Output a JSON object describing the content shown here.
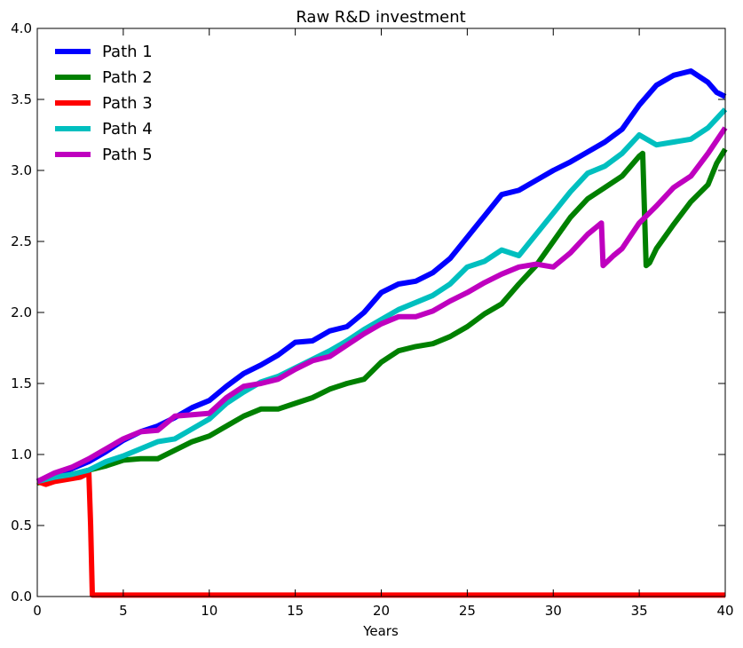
{
  "chart_data": {
    "type": "line",
    "title": "Raw R&D investment",
    "xlabel": "Years",
    "ylabel": "",
    "xlim": [
      0,
      40
    ],
    "ylim": [
      0.0,
      4.0
    ],
    "x_ticks": [
      0,
      5,
      10,
      15,
      20,
      25,
      30,
      35,
      40
    ],
    "y_ticks": [
      0.0,
      0.5,
      1.0,
      1.5,
      2.0,
      2.5,
      3.0,
      3.5,
      4.0
    ],
    "y_tick_labels": [
      "0.0",
      "0.5",
      "1.0",
      "1.5",
      "2.0",
      "2.5",
      "3.0",
      "3.5",
      "4.0"
    ],
    "grid": false,
    "legend_position": "top-left",
    "series": [
      {
        "name": "Path 1",
        "color": "#0000ff",
        "x": [
          0,
          1,
          2,
          3,
          4,
          5,
          6,
          7,
          8,
          9,
          10,
          11,
          12,
          13,
          14,
          15,
          16,
          17,
          18,
          19,
          20,
          21,
          22,
          23,
          24,
          25,
          26,
          27,
          28,
          29,
          30,
          31,
          32,
          33,
          34,
          35,
          36,
          37,
          38,
          39,
          39.5,
          40
        ],
        "y": [
          0.81,
          0.86,
          0.9,
          0.95,
          1.02,
          1.1,
          1.16,
          1.2,
          1.26,
          1.33,
          1.38,
          1.48,
          1.57,
          1.63,
          1.7,
          1.79,
          1.8,
          1.87,
          1.9,
          2.0,
          2.14,
          2.2,
          2.22,
          2.28,
          2.38,
          2.53,
          2.68,
          2.83,
          2.86,
          2.93,
          3.0,
          3.06,
          3.13,
          3.2,
          3.29,
          3.46,
          3.6,
          3.67,
          3.7,
          3.62,
          3.55,
          3.52
        ]
      },
      {
        "name": "Path 2",
        "color": "#008000",
        "x": [
          0,
          1,
          2,
          3,
          4,
          5,
          6,
          7,
          8,
          9,
          10,
          11,
          12,
          13,
          14,
          15,
          16,
          17,
          18,
          19,
          20,
          21,
          22,
          23,
          24,
          25,
          26,
          27,
          28,
          29,
          30,
          31,
          32,
          33,
          34,
          35,
          35.2,
          35.4,
          35.6,
          36,
          37,
          38,
          39,
          39.5,
          40
        ],
        "y": [
          0.8,
          0.82,
          0.86,
          0.89,
          0.92,
          0.96,
          0.97,
          0.97,
          1.03,
          1.09,
          1.13,
          1.2,
          1.27,
          1.32,
          1.32,
          1.36,
          1.4,
          1.46,
          1.5,
          1.53,
          1.65,
          1.73,
          1.76,
          1.78,
          1.83,
          1.9,
          1.99,
          2.06,
          2.2,
          2.33,
          2.5,
          2.67,
          2.8,
          2.88,
          2.96,
          3.1,
          3.12,
          2.33,
          2.35,
          2.45,
          2.62,
          2.78,
          2.9,
          3.05,
          3.15
        ]
      },
      {
        "name": "Path 3",
        "color": "#ff0000",
        "x": [
          0,
          0.5,
          1,
          1.5,
          2,
          2.5,
          3.0,
          3.1,
          3.2,
          5,
          10,
          15,
          20,
          25,
          30,
          35,
          40
        ],
        "y": [
          0.81,
          0.79,
          0.81,
          0.82,
          0.83,
          0.84,
          0.87,
          0.5,
          0.01,
          0.01,
          0.01,
          0.01,
          0.01,
          0.01,
          0.01,
          0.01,
          0.01
        ]
      },
      {
        "name": "Path 4",
        "color": "#00bfbf",
        "x": [
          0,
          1,
          2,
          3,
          4,
          5,
          6,
          7,
          8,
          9,
          10,
          11,
          12,
          13,
          14,
          15,
          16,
          17,
          18,
          19,
          20,
          21,
          22,
          23,
          24,
          25,
          26,
          27,
          28,
          29,
          30,
          31,
          32,
          33,
          34,
          35,
          36,
          37,
          38,
          39,
          40
        ],
        "y": [
          0.81,
          0.84,
          0.86,
          0.89,
          0.95,
          0.99,
          1.04,
          1.09,
          1.11,
          1.18,
          1.25,
          1.36,
          1.44,
          1.51,
          1.55,
          1.61,
          1.67,
          1.73,
          1.8,
          1.88,
          1.95,
          2.02,
          2.07,
          2.12,
          2.2,
          2.32,
          2.36,
          2.44,
          2.4,
          2.55,
          2.7,
          2.85,
          2.98,
          3.03,
          3.12,
          3.25,
          3.18,
          3.2,
          3.22,
          3.3,
          3.43
        ]
      },
      {
        "name": "Path 5",
        "color": "#bf00bf",
        "x": [
          0,
          1,
          2,
          3,
          4,
          5,
          6,
          7,
          8,
          9,
          10,
          11,
          12,
          13,
          14,
          15,
          16,
          17,
          18,
          19,
          20,
          21,
          22,
          23,
          24,
          25,
          26,
          27,
          28,
          29,
          30,
          31,
          32,
          32.8,
          32.9,
          33.5,
          34,
          35,
          36,
          37,
          38,
          39,
          40
        ],
        "y": [
          0.81,
          0.87,
          0.91,
          0.97,
          1.04,
          1.11,
          1.16,
          1.17,
          1.27,
          1.28,
          1.29,
          1.4,
          1.48,
          1.5,
          1.53,
          1.6,
          1.66,
          1.69,
          1.77,
          1.85,
          1.92,
          1.97,
          1.97,
          2.01,
          2.08,
          2.14,
          2.21,
          2.27,
          2.32,
          2.34,
          2.32,
          2.42,
          2.55,
          2.63,
          2.33,
          2.4,
          2.45,
          2.63,
          2.75,
          2.88,
          2.96,
          3.12,
          3.3
        ]
      }
    ]
  }
}
